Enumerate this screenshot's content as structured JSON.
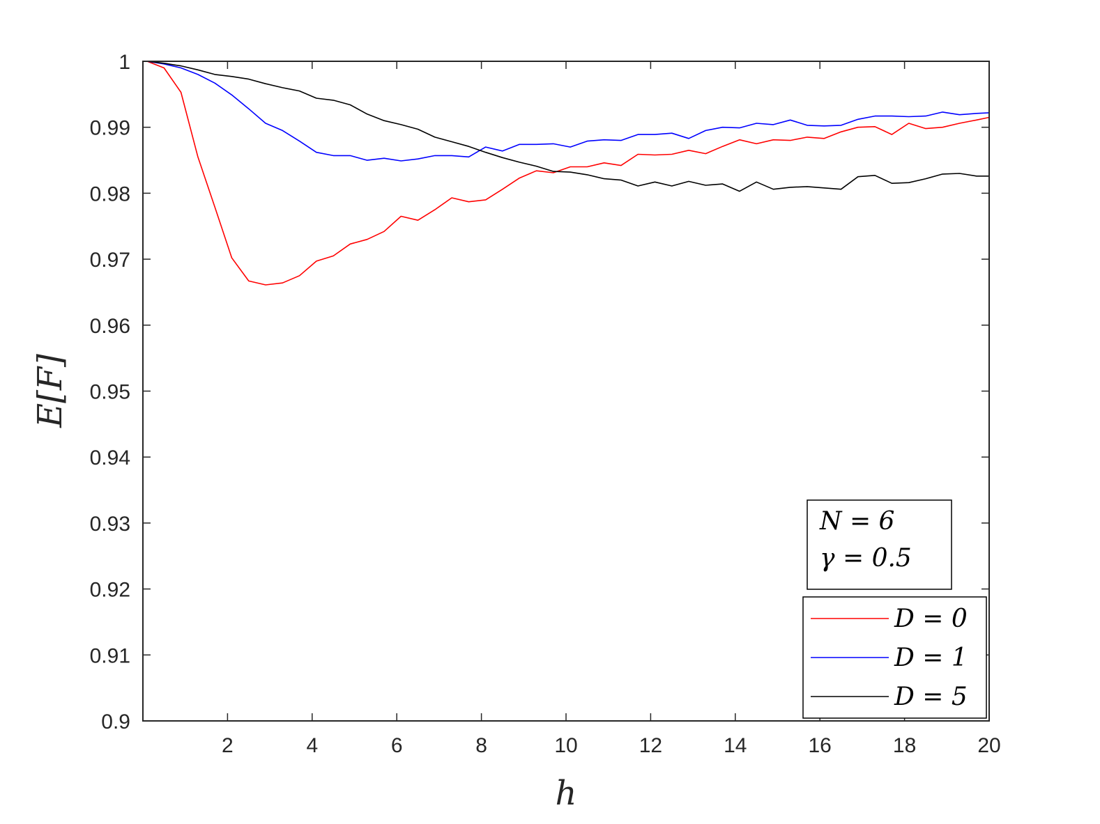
{
  "chart_data": {
    "type": "line",
    "xlabel": "h",
    "ylabel": "E[F]",
    "xlim": [
      0,
      20
    ],
    "ylim": [
      0.9,
      1.0
    ],
    "xticks": [
      2,
      4,
      6,
      8,
      10,
      12,
      14,
      16,
      18,
      20
    ],
    "xtick_labels": [
      "2",
      "4",
      "6",
      "8",
      "10",
      "12",
      "14",
      "16",
      "18",
      "20"
    ],
    "yticks": [
      0.9,
      0.91,
      0.92,
      0.93,
      0.94,
      0.95,
      0.96,
      0.97,
      0.98,
      0.99,
      1.0
    ],
    "ytick_labels": [
      "0.9",
      "0.91",
      "0.92",
      "0.93",
      "0.94",
      "0.95",
      "0.96",
      "0.97",
      "0.98",
      "0.99",
      "1"
    ],
    "grid": false,
    "legend_position": "bottom-right",
    "annotation": {
      "lines": [
        "N = 6",
        "γ = 0.5"
      ],
      "position": "bottom-right"
    },
    "x": [
      0.1,
      0.5,
      0.9,
      1.3,
      1.7,
      2.1,
      2.5,
      2.9,
      3.3,
      3.7,
      4.1,
      4.5,
      4.9,
      5.3,
      5.7,
      6.1,
      6.5,
      6.9,
      7.3,
      7.7,
      8.1,
      8.5,
      8.9,
      9.3,
      9.7,
      10.1,
      10.5,
      10.9,
      11.3,
      11.7,
      12.1,
      12.5,
      12.9,
      13.3,
      13.7,
      14.1,
      14.5,
      14.9,
      15.3,
      15.7,
      16.1,
      16.5,
      16.9,
      17.3,
      17.7,
      18.1,
      18.5,
      18.9,
      19.3,
      19.7,
      20.0
    ],
    "series": [
      {
        "name": "D = 0",
        "color": "#ff0000",
        "values": [
          1.0,
          0.999,
          0.9953,
          0.9855,
          0.9779,
          0.9702,
          0.9667,
          0.9661,
          0.9664,
          0.9675,
          0.9697,
          0.9705,
          0.9723,
          0.973,
          0.9742,
          0.9765,
          0.9759,
          0.9775,
          0.9793,
          0.9787,
          0.979,
          0.9806,
          0.9823,
          0.9834,
          0.9831,
          0.984,
          0.984,
          0.9846,
          0.9842,
          0.9859,
          0.9858,
          0.9859,
          0.9865,
          0.986,
          0.9871,
          0.9881,
          0.9875,
          0.9881,
          0.988,
          0.9885,
          0.9883,
          0.9893,
          0.99,
          0.9901,
          0.9889,
          0.9906,
          0.9898,
          0.99,
          0.9906,
          0.9911,
          0.9915
        ]
      },
      {
        "name": "D = 1",
        "color": "#0000ff",
        "values": [
          1.0,
          0.9996,
          0.999,
          0.998,
          0.9967,
          0.9949,
          0.9928,
          0.9906,
          0.9895,
          0.9879,
          0.9862,
          0.9857,
          0.9857,
          0.985,
          0.9853,
          0.9849,
          0.9852,
          0.9857,
          0.9857,
          0.9855,
          0.987,
          0.9864,
          0.9874,
          0.9874,
          0.9875,
          0.987,
          0.9879,
          0.9881,
          0.988,
          0.9889,
          0.9889,
          0.9891,
          0.9883,
          0.9895,
          0.99,
          0.9899,
          0.9906,
          0.9904,
          0.9911,
          0.9903,
          0.9902,
          0.9903,
          0.9912,
          0.9917,
          0.9917,
          0.9916,
          0.9917,
          0.9923,
          0.9919,
          0.9921,
          0.9922
        ]
      },
      {
        "name": "D = 5",
        "color": "#000000",
        "values": [
          1.0,
          0.9997,
          0.9993,
          0.9987,
          0.998,
          0.9977,
          0.9973,
          0.9966,
          0.996,
          0.9955,
          0.9944,
          0.9941,
          0.9934,
          0.992,
          0.991,
          0.9904,
          0.9897,
          0.9885,
          0.9878,
          0.9871,
          0.9862,
          0.9854,
          0.9847,
          0.9841,
          0.9833,
          0.9832,
          0.9828,
          0.9822,
          0.982,
          0.9811,
          0.9817,
          0.9811,
          0.9818,
          0.9812,
          0.9814,
          0.9803,
          0.9817,
          0.9806,
          0.9809,
          0.981,
          0.9808,
          0.9806,
          0.9825,
          0.9827,
          0.9815,
          0.9816,
          0.9822,
          0.9829,
          0.983,
          0.9826,
          0.9826
        ]
      }
    ]
  }
}
